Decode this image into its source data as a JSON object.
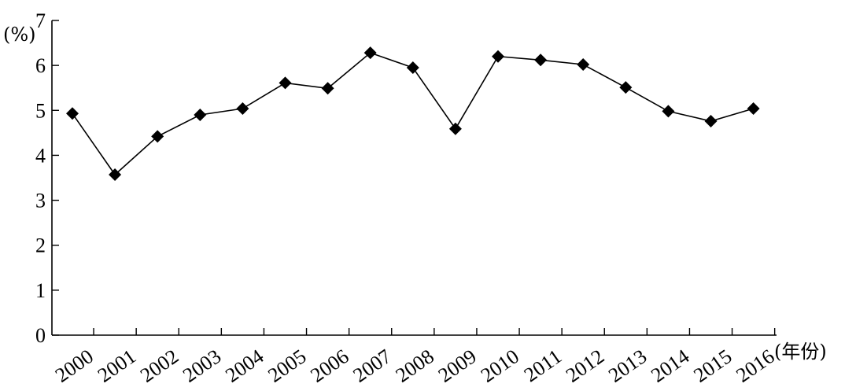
{
  "chart_data": {
    "type": "line",
    "title": "",
    "xlabel": "(年份)",
    "ylabel": "(%)",
    "ylim": [
      0,
      7
    ],
    "yticks": [
      0,
      1,
      2,
      3,
      4,
      5,
      6,
      7
    ],
    "grid": false,
    "legend": "none",
    "categories": [
      "2000",
      "2001",
      "2002",
      "2003",
      "2004",
      "2005",
      "2006",
      "2007",
      "2008",
      "2009",
      "2010",
      "2011",
      "2012",
      "2013",
      "2014",
      "2015",
      "2016"
    ],
    "series": [
      {
        "values": [
          4.93,
          3.57,
          4.42,
          4.9,
          5.04,
          5.61,
          5.49,
          6.28,
          5.95,
          4.59,
          6.2,
          6.12,
          6.02,
          5.51,
          4.98,
          4.76,
          5.04
        ],
        "marker": "diamond",
        "color": "#000000"
      }
    ]
  }
}
